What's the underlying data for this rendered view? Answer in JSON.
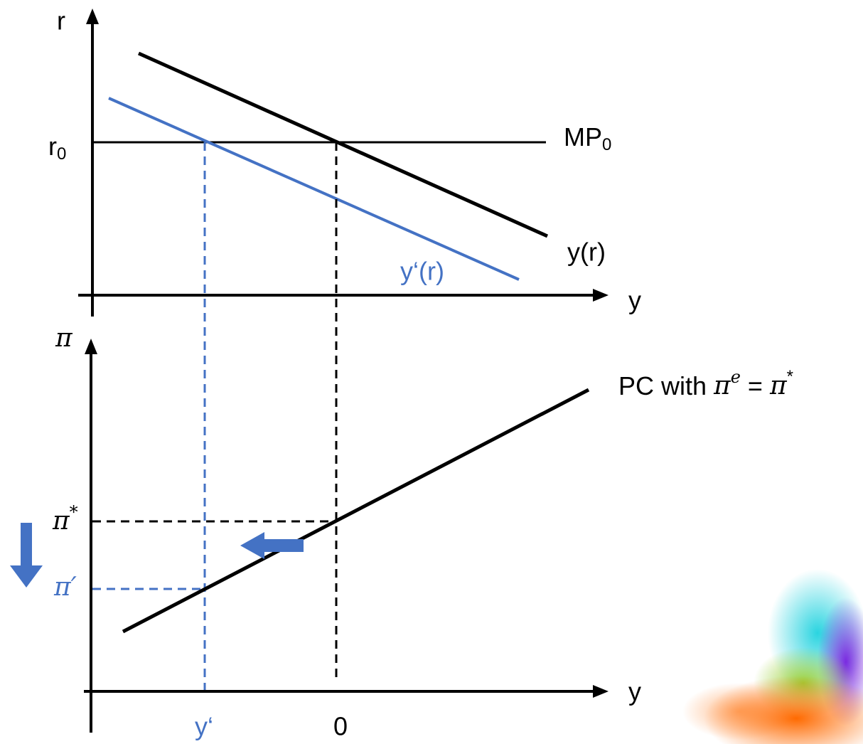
{
  "top_panel": {
    "y_axis_label": "r",
    "x_axis_label": "y",
    "r0": {
      "base": "r",
      "sub": "0"
    },
    "mp_label": {
      "base": "MP",
      "sub": "0"
    },
    "curve_label": "y(r)",
    "shifted_curve_label": "y‘(r)"
  },
  "bottom_panel": {
    "y_axis_label": "π",
    "x_axis_label": "y",
    "pi_star": {
      "base": "π",
      "sup": "*"
    },
    "pi_prime": "π′",
    "pc_label": {
      "text": "PC with",
      "lhs": "π",
      "lhs_sup": "e",
      "eq": "=",
      "rhs": "π",
      "rhs_sup": "*"
    },
    "y_prime": "y‘",
    "zero": "0"
  }
}
